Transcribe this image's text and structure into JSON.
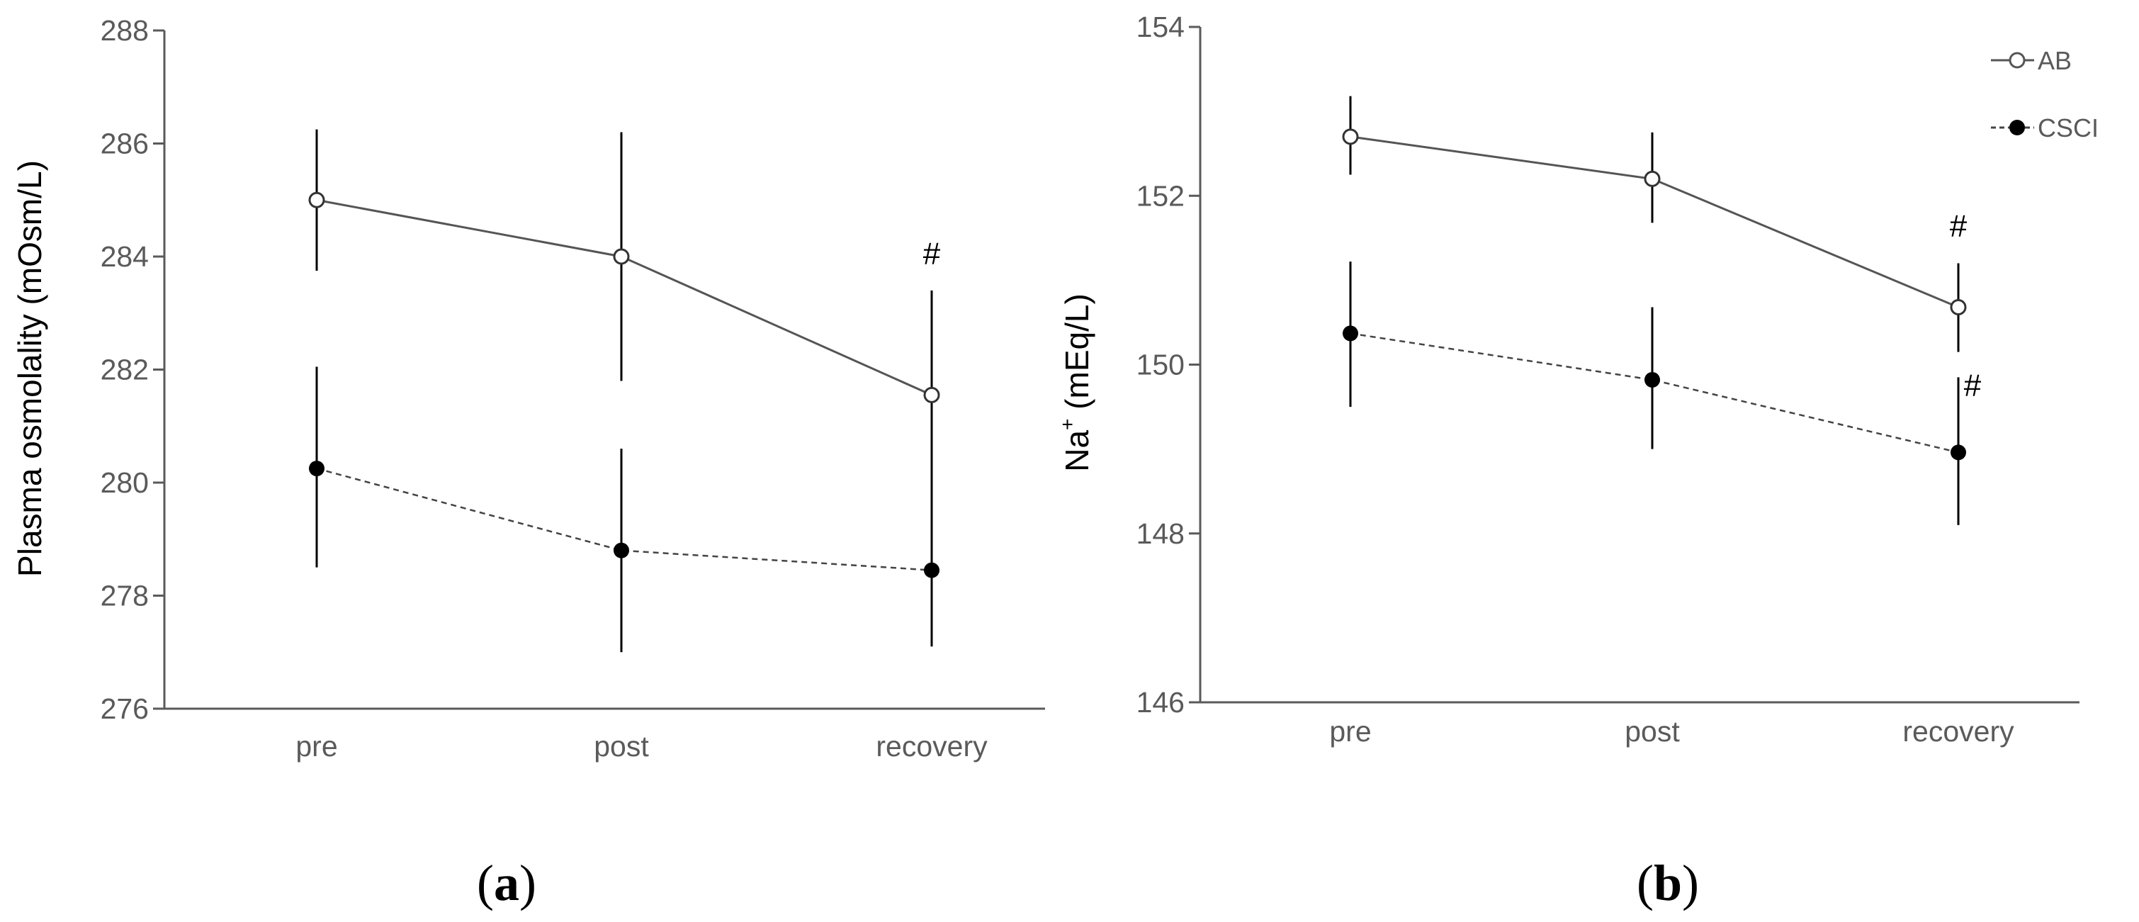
{
  "colors": {
    "axis": "#5a5a5a",
    "ab_series": "#555555",
    "csci_series": "#444444",
    "marker_filled": "#000000",
    "marker_open_fill": "#ffffff",
    "text": "#000000"
  },
  "chart_data": [
    {
      "id": "panel-a",
      "type": "line",
      "caption_letter": "a",
      "xlabel": "",
      "ylabel": "Plasma  osmolality (mOsm/L)",
      "ylim": [
        276,
        288
      ],
      "ytick_step": 2,
      "yticks": [
        "276",
        "278",
        "280",
        "282",
        "284",
        "286",
        "288"
      ],
      "categories": [
        "pre",
        "post",
        "recovery"
      ],
      "series": [
        {
          "name": "AB",
          "style": "open-solid",
          "values": [
            285.0,
            284.0,
            281.55
          ],
          "err_low": [
            283.75,
            281.8,
            279.75
          ],
          "err_high": [
            286.25,
            286.2,
            283.4
          ]
        },
        {
          "name": "CSCI",
          "style": "filled-dashed",
          "values": [
            280.25,
            278.8,
            278.45
          ],
          "err_low": [
            278.5,
            277.0,
            277.1
          ],
          "err_high": [
            282.05,
            280.6,
            279.8
          ]
        }
      ],
      "annotations": [
        {
          "text": "#",
          "series": "AB",
          "category": "recovery"
        }
      ],
      "legend": null
    },
    {
      "id": "panel-b",
      "type": "line",
      "caption_letter": "b",
      "xlabel": "",
      "ylabel_main": "Na",
      "ylabel_sup": "+",
      "ylabel_rest": " (mEq/L)",
      "ylim": [
        146,
        154
      ],
      "ytick_step": 2,
      "yticks": [
        "146",
        "148",
        "150",
        "152",
        "154"
      ],
      "categories": [
        "pre",
        "post",
        "recovery"
      ],
      "series": [
        {
          "name": "AB",
          "style": "open-solid",
          "values": [
            152.7,
            152.2,
            150.68
          ],
          "err_low": [
            152.25,
            151.68,
            150.15
          ],
          "err_high": [
            153.18,
            152.75,
            151.2
          ]
        },
        {
          "name": "CSCI",
          "style": "filled-dashed",
          "values": [
            150.37,
            149.82,
            148.96
          ],
          "err_low": [
            149.5,
            149.0,
            148.1
          ],
          "err_high": [
            151.22,
            150.68,
            149.85
          ]
        }
      ],
      "annotations": [
        {
          "text": "#",
          "series": "AB",
          "category": "recovery"
        },
        {
          "text": "#",
          "series": "CSCI",
          "category": "recovery"
        }
      ],
      "legend": {
        "placement": "top-right",
        "entries": [
          "AB",
          "CSCI"
        ]
      }
    }
  ]
}
